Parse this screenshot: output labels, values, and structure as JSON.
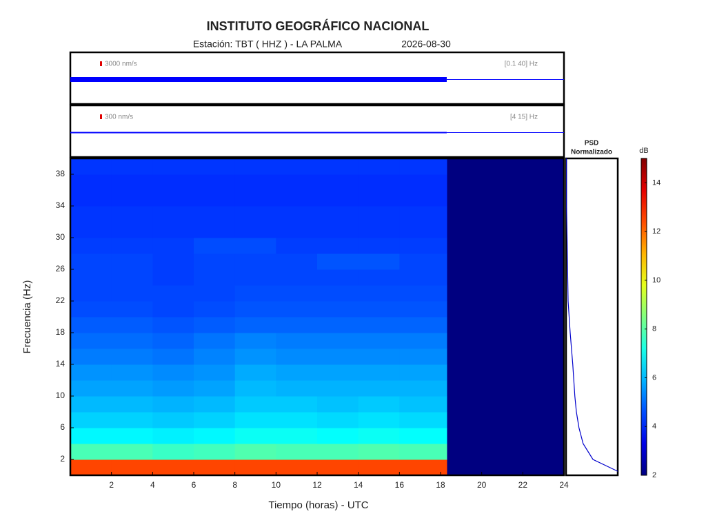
{
  "chart_data": [
    {
      "type": "waveform",
      "scale_label": "3000 nm/s",
      "band_label": "[0.1 40] Hz",
      "color": "#0000ff",
      "marker_color": "#e00000"
    },
    {
      "type": "waveform",
      "scale_label": "300 nm/s",
      "band_label": "[4 15] Hz",
      "color": "#0000ff",
      "marker_color": "#e00000"
    },
    {
      "type": "heatmap",
      "title": "INSTITUTO GEOGRÁFICO NACIONAL",
      "subtitle": "Estación:  TBT ( HHZ ) - LA PALMA",
      "date": "2026-08-30",
      "x_label": "Tiempo (horas) - UTC",
      "y_label": "Frecuencia  (Hz)",
      "xlim": [
        0,
        24
      ],
      "xticks": [
        2,
        4,
        6,
        8,
        10,
        12,
        14,
        16,
        18,
        20,
        22,
        24
      ],
      "ylim": [
        0,
        40
      ],
      "yticks": [
        2,
        6,
        10,
        14,
        18,
        22,
        26,
        30,
        34,
        38
      ],
      "x_edges": [
        0,
        2,
        4,
        6,
        8,
        10,
        12,
        14,
        16,
        18,
        18.3
      ],
      "y_edges": [
        0,
        2,
        4,
        6,
        8,
        10,
        12,
        14,
        16,
        18,
        20,
        22,
        24,
        26,
        28,
        30,
        32,
        34,
        36,
        38,
        40
      ],
      "z": [
        [
          12.5,
          12.5,
          12.5,
          12.5,
          12.5,
          12.5,
          12.5,
          12.5,
          12.5,
          12.5
        ],
        [
          7.8,
          7.8,
          7.6,
          7.7,
          7.9,
          7.8,
          7.8,
          7.9,
          7.8,
          7.8
        ],
        [
          6.8,
          6.8,
          6.7,
          6.8,
          7.0,
          7.0,
          6.9,
          7.0,
          6.9,
          6.9
        ],
        [
          6.3,
          6.3,
          6.2,
          6.3,
          6.5,
          6.5,
          6.4,
          6.5,
          6.4,
          6.4
        ],
        [
          6.0,
          6.0,
          5.9,
          6.0,
          6.2,
          6.2,
          6.1,
          6.2,
          6.1,
          6.1
        ],
        [
          5.7,
          5.7,
          5.6,
          5.7,
          6.0,
          5.9,
          5.9,
          5.9,
          5.9,
          5.9
        ],
        [
          5.5,
          5.5,
          5.4,
          5.5,
          5.8,
          5.7,
          5.7,
          5.7,
          5.7,
          5.7
        ],
        [
          5.2,
          5.2,
          5.1,
          5.3,
          5.5,
          5.4,
          5.4,
          5.4,
          5.4,
          5.4
        ],
        [
          5.0,
          5.0,
          4.9,
          5.1,
          5.3,
          5.2,
          5.2,
          5.2,
          5.2,
          5.2
        ],
        [
          4.8,
          4.8,
          4.7,
          4.8,
          4.9,
          4.9,
          4.9,
          4.9,
          4.9,
          4.9
        ],
        [
          4.6,
          4.6,
          4.5,
          4.6,
          4.7,
          4.7,
          4.7,
          4.7,
          4.7,
          4.7
        ],
        [
          4.5,
          4.5,
          4.5,
          4.5,
          4.6,
          4.6,
          4.6,
          4.6,
          4.6,
          4.6
        ],
        [
          4.5,
          4.5,
          4.4,
          4.5,
          4.5,
          4.5,
          4.5,
          4.5,
          4.5,
          4.5
        ],
        [
          4.5,
          4.5,
          4.4,
          4.5,
          4.5,
          4.5,
          4.7,
          4.7,
          4.5,
          4.5
        ],
        [
          4.4,
          4.4,
          4.4,
          4.6,
          4.6,
          4.4,
          4.4,
          4.4,
          4.4,
          4.4
        ],
        [
          4.3,
          4.3,
          4.3,
          4.3,
          4.3,
          4.3,
          4.3,
          4.3,
          4.3,
          4.3
        ],
        [
          4.3,
          4.3,
          4.3,
          4.3,
          4.3,
          4.3,
          4.3,
          4.3,
          4.3,
          4.3
        ],
        [
          4.2,
          4.2,
          4.2,
          4.2,
          4.2,
          4.2,
          4.2,
          4.2,
          4.2,
          4.2
        ],
        [
          4.2,
          4.2,
          4.2,
          4.2,
          4.2,
          4.2,
          4.2,
          4.2,
          4.2,
          4.2
        ],
        [
          4.3,
          4.3,
          4.3,
          4.3,
          4.3,
          4.3,
          4.3,
          4.3,
          4.3,
          4.3
        ]
      ],
      "colorbar": {
        "label": "dB",
        "lim": [
          2,
          15
        ],
        "ticks": [
          2,
          4,
          6,
          8,
          10,
          12,
          14
        ]
      }
    },
    {
      "type": "line",
      "title": "PSD",
      "subtitle": "Normalizado",
      "color": "#0000cc",
      "xlim": [
        0,
        1
      ],
      "freqs": [
        0.5,
        2,
        4,
        6,
        8,
        10,
        14,
        18,
        22,
        26,
        30,
        34,
        38,
        40
      ],
      "values": [
        1,
        0.52,
        0.33,
        0.25,
        0.2,
        0.17,
        0.13,
        0.08,
        0.04,
        0.03,
        0.02,
        0.01,
        0.01,
        0.01
      ]
    }
  ]
}
